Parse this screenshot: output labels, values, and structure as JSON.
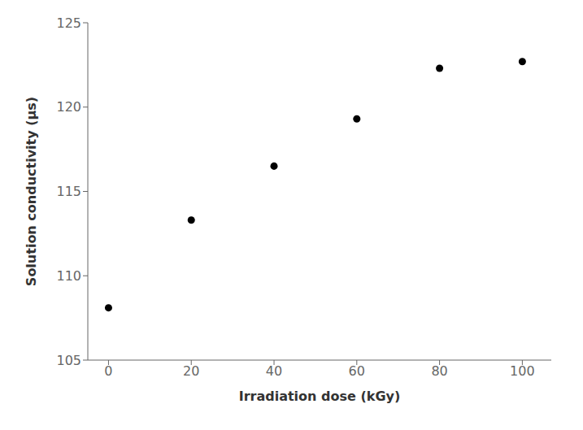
{
  "chart_data": {
    "type": "scatter",
    "x": [
      0,
      20,
      40,
      60,
      80,
      100
    ],
    "values": [
      108.1,
      113.3,
      116.5,
      119.3,
      122.3,
      122.7
    ],
    "xlabel": "Irradiation dose (kGy)",
    "ylabel": "Solution conductivity (μs)",
    "xlim": [
      -5,
      107
    ],
    "ylim": [
      105,
      125
    ],
    "xticks": [
      0,
      20,
      40,
      60,
      80,
      100
    ],
    "yticks": [
      105,
      110,
      115,
      120,
      125
    ],
    "color": "black",
    "grid": false
  }
}
